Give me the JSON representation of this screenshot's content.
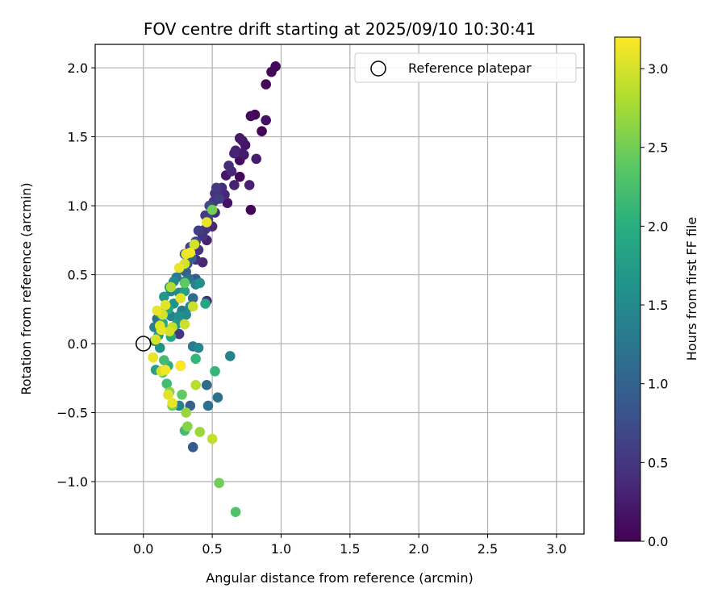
{
  "chart_data": {
    "type": "scatter",
    "title": "FOV centre drift starting at 2025/09/10 10:30:41",
    "xlabel": "Angular distance from reference (arcmin)",
    "ylabel": "Rotation from reference (arcmin)",
    "xlim": [
      -0.35,
      3.2
    ],
    "ylim": [
      -1.38,
      2.17
    ],
    "xticks": [
      0.0,
      0.5,
      1.0,
      1.5,
      2.0,
      2.5,
      3.0
    ],
    "xtick_labels": [
      "0.0",
      "0.5",
      "1.0",
      "1.5",
      "2.0",
      "2.5",
      "3.0"
    ],
    "yticks": [
      -1.0,
      -0.5,
      0.0,
      0.5,
      1.0,
      1.5,
      2.0
    ],
    "ytick_labels": [
      "−1.0",
      "−0.5",
      "0.0",
      "0.5",
      "1.0",
      "1.5",
      "2.0"
    ],
    "grid": true,
    "legend": {
      "placement": "upper-right",
      "entries": [
        "Reference platepar"
      ]
    },
    "reference_marker": {
      "x": 0.0,
      "y": 0.0,
      "label": "Reference platepar"
    },
    "colorbar": {
      "label": "Hours from first FF file",
      "colormap": "viridis",
      "range": [
        0.0,
        3.2
      ],
      "ticks": [
        0.0,
        0.5,
        1.0,
        1.5,
        2.0,
        2.5,
        3.0
      ],
      "tick_labels": [
        "0.0",
        "0.5",
        "1.0",
        "1.5",
        "2.0",
        "2.5",
        "3.0"
      ]
    },
    "series": [
      {
        "points": [
          [
            0.96,
            2.01,
            0.05
          ],
          [
            0.93,
            1.97,
            0.05
          ],
          [
            0.89,
            1.88,
            0.07
          ],
          [
            0.89,
            1.62,
            0.15
          ],
          [
            0.78,
            1.65,
            0.1
          ],
          [
            0.81,
            1.66,
            0.05
          ],
          [
            0.86,
            1.54,
            0.03
          ],
          [
            0.82,
            1.34,
            0.25
          ],
          [
            0.78,
            0.97,
            0.02
          ],
          [
            0.77,
            1.15,
            0.3
          ],
          [
            0.7,
            1.49,
            0.22
          ],
          [
            0.72,
            1.47,
            0.2
          ],
          [
            0.74,
            1.44,
            0.18
          ],
          [
            0.67,
            1.4,
            0.3
          ],
          [
            0.66,
            1.38,
            0.33
          ],
          [
            0.71,
            1.38,
            0.25
          ],
          [
            0.73,
            1.37,
            0.2
          ],
          [
            0.7,
            1.33,
            0.1
          ],
          [
            0.62,
            1.29,
            0.38
          ],
          [
            0.64,
            1.25,
            0.35
          ],
          [
            0.6,
            1.22,
            0.2
          ],
          [
            0.7,
            1.21,
            0.05
          ],
          [
            0.66,
            1.15,
            0.3
          ],
          [
            0.57,
            1.13,
            0.4
          ],
          [
            0.53,
            1.13,
            0.55
          ],
          [
            0.52,
            1.09,
            0.45
          ],
          [
            0.59,
            1.08,
            0.35
          ],
          [
            0.55,
            1.05,
            0.6
          ],
          [
            0.51,
            1.03,
            0.5
          ],
          [
            0.61,
            1.02,
            0.15
          ],
          [
            0.48,
            1.0,
            0.7
          ],
          [
            0.52,
            0.95,
            0.4
          ],
          [
            0.45,
            0.93,
            0.55
          ],
          [
            0.47,
            0.9,
            0.65
          ],
          [
            0.5,
            0.85,
            0.35
          ],
          [
            0.45,
            0.83,
            0.5
          ],
          [
            0.4,
            0.82,
            0.6
          ],
          [
            0.43,
            0.78,
            0.45
          ],
          [
            0.46,
            0.75,
            0.3
          ],
          [
            0.38,
            0.74,
            0.7
          ],
          [
            0.36,
            0.71,
            0.8
          ],
          [
            0.34,
            0.7,
            0.6
          ],
          [
            0.4,
            0.68,
            0.5
          ],
          [
            0.3,
            0.65,
            0.9
          ],
          [
            0.35,
            0.62,
            1.0
          ],
          [
            0.38,
            0.61,
            0.4
          ],
          [
            0.32,
            0.58,
            0.85
          ],
          [
            0.43,
            0.59,
            0.35
          ],
          [
            0.27,
            0.54,
            1.1
          ],
          [
            0.31,
            0.52,
            1.0
          ],
          [
            0.33,
            0.47,
            1.2
          ],
          [
            0.38,
            0.47,
            0.9
          ],
          [
            0.24,
            0.48,
            1.3
          ],
          [
            0.22,
            0.45,
            1.5
          ],
          [
            0.3,
            0.45,
            1.2
          ],
          [
            0.38,
            0.43,
            1.4
          ],
          [
            0.41,
            0.44,
            1.6
          ],
          [
            0.19,
            0.41,
            1.6
          ],
          [
            0.2,
            0.38,
            1.4
          ],
          [
            0.26,
            0.37,
            1.5
          ],
          [
            0.3,
            0.38,
            1.8
          ],
          [
            0.36,
            0.33,
            1.1
          ],
          [
            0.46,
            0.31,
            0.4
          ],
          [
            0.45,
            0.29,
            1.9
          ],
          [
            0.15,
            0.34,
            1.7
          ],
          [
            0.22,
            0.29,
            1.6
          ],
          [
            0.34,
            0.27,
            1.5
          ],
          [
            0.18,
            0.25,
            1.9
          ],
          [
            0.28,
            0.24,
            1.3
          ],
          [
            0.12,
            0.22,
            1.8
          ],
          [
            0.2,
            0.2,
            1.4
          ],
          [
            0.1,
            0.18,
            1.2
          ],
          [
            0.26,
            0.2,
            1.6
          ],
          [
            0.31,
            0.21,
            1.5
          ],
          [
            0.14,
            0.15,
            1.9
          ],
          [
            0.24,
            0.14,
            1.7
          ],
          [
            0.08,
            0.12,
            1.4
          ],
          [
            0.18,
            0.1,
            1.6
          ],
          [
            0.26,
            0.07,
            0.5
          ],
          [
            0.11,
            0.06,
            1.8
          ],
          [
            0.2,
            0.05,
            1.9
          ],
          [
            0.08,
            0.02,
            1.5
          ],
          [
            0.12,
            -0.03,
            1.6
          ],
          [
            0.36,
            -0.02,
            1.3
          ],
          [
            0.4,
            -0.03,
            1.5
          ],
          [
            0.63,
            -0.09,
            1.4
          ],
          [
            0.38,
            -0.11,
            2.1
          ],
          [
            0.15,
            -0.12,
            2.2
          ],
          [
            0.18,
            -0.16,
            2.0
          ],
          [
            0.27,
            -0.16,
            0.3
          ],
          [
            0.09,
            -0.19,
            1.8
          ],
          [
            0.14,
            -0.21,
            2.3
          ],
          [
            0.52,
            -0.2,
            2.1
          ],
          [
            0.17,
            -0.29,
            2.2
          ],
          [
            0.46,
            -0.3,
            1.1
          ],
          [
            0.19,
            -0.35,
            2.6
          ],
          [
            0.28,
            -0.37,
            2.4
          ],
          [
            0.54,
            -0.39,
            1.2
          ],
          [
            0.21,
            -0.45,
            2.5
          ],
          [
            0.26,
            -0.45,
            1.4
          ],
          [
            0.34,
            -0.45,
            1.0
          ],
          [
            0.47,
            -0.45,
            1.2
          ],
          [
            0.31,
            -0.5,
            2.7
          ],
          [
            0.32,
            -0.6,
            2.6
          ],
          [
            0.3,
            -0.63,
            2.2
          ],
          [
            0.41,
            -0.64,
            2.7
          ],
          [
            0.5,
            -0.69,
            2.9
          ],
          [
            0.36,
            -0.75,
            0.9
          ],
          [
            0.55,
            -1.01,
            2.5
          ],
          [
            0.67,
            -1.22,
            2.3
          ],
          [
            0.07,
            -0.1,
            3.1
          ],
          [
            0.09,
            0.03,
            3.0
          ],
          [
            0.12,
            0.13,
            3.05
          ],
          [
            0.1,
            0.24,
            3.1
          ],
          [
            0.14,
            0.21,
            3.0
          ],
          [
            0.13,
            0.1,
            3.1
          ],
          [
            0.16,
            0.28,
            3.05
          ],
          [
            0.21,
            0.12,
            2.9
          ],
          [
            0.19,
            0.09,
            3.0
          ],
          [
            0.27,
            0.33,
            3.05
          ],
          [
            0.3,
            0.14,
            2.95
          ],
          [
            0.26,
            0.55,
            3.1
          ],
          [
            0.3,
            0.58,
            3.0
          ],
          [
            0.31,
            0.65,
            3.1
          ],
          [
            0.34,
            0.66,
            3.15
          ],
          [
            0.37,
            0.72,
            3.0
          ],
          [
            0.46,
            0.88,
            3.1
          ],
          [
            0.2,
            0.41,
            2.8
          ],
          [
            0.36,
            0.27,
            2.95
          ],
          [
            0.16,
            -0.19,
            3.15
          ],
          [
            0.13,
            -0.2,
            3.0
          ],
          [
            0.18,
            -0.37,
            3.05
          ],
          [
            0.21,
            -0.43,
            3.1
          ],
          [
            0.27,
            -0.16,
            3.2
          ],
          [
            0.38,
            -0.3,
            2.85
          ],
          [
            0.5,
            0.97,
            2.5
          ],
          [
            0.3,
            0.44,
            2.4
          ]
        ]
      }
    ]
  }
}
